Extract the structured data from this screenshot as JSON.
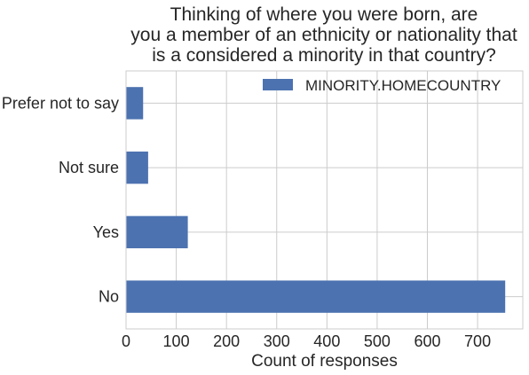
{
  "chart_data": {
    "type": "bar",
    "orientation": "horizontal",
    "title_lines": [
      "Thinking of where you were born, are",
      "you a member of an ethnicity or nationality that",
      "is a considered a minority in that country?"
    ],
    "xlabel": "Count of responses",
    "ylabel": "",
    "categories": [
      "No",
      "Yes",
      "Not sure",
      "Prefer not to say"
    ],
    "series": [
      {
        "name": "MINORITY.HOMECOUNTRY",
        "values": [
          755,
          123,
          44,
          34
        ],
        "color": "#4c72b0"
      }
    ],
    "xlim": [
      0,
      790
    ],
    "xticks": [
      0,
      100,
      200,
      300,
      400,
      500,
      600,
      700
    ],
    "grid": true,
    "legend_position": "top-right"
  }
}
